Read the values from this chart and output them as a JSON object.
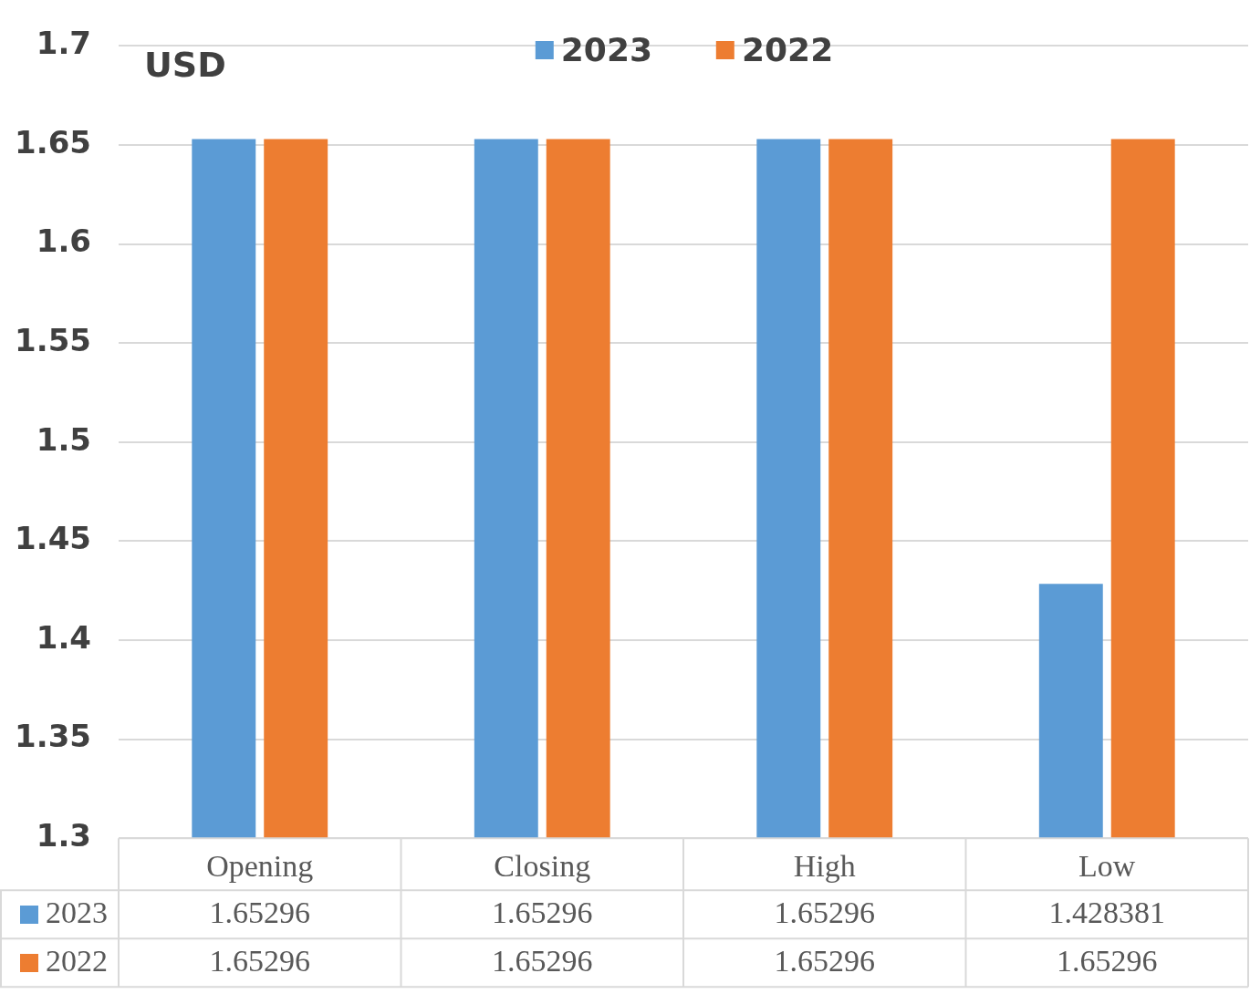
{
  "chart_data": {
    "type": "bar",
    "ylabel": "USD",
    "categories": [
      "Opening",
      "Closing",
      "High",
      "Low"
    ],
    "series": [
      {
        "name": "2023",
        "color": "#5b9bd5",
        "values": [
          1.65296,
          1.65296,
          1.65296,
          1.428381
        ]
      },
      {
        "name": "2022",
        "color": "#ed7d31",
        "values": [
          1.65296,
          1.65296,
          1.65296,
          1.65296
        ]
      }
    ],
    "ylim": [
      1.3,
      1.7
    ],
    "yticks": [
      1.3,
      1.35,
      1.4,
      1.45,
      1.5,
      1.55,
      1.6,
      1.65,
      1.7
    ],
    "grid": "y",
    "legend": "top",
    "data_labels": true
  }
}
